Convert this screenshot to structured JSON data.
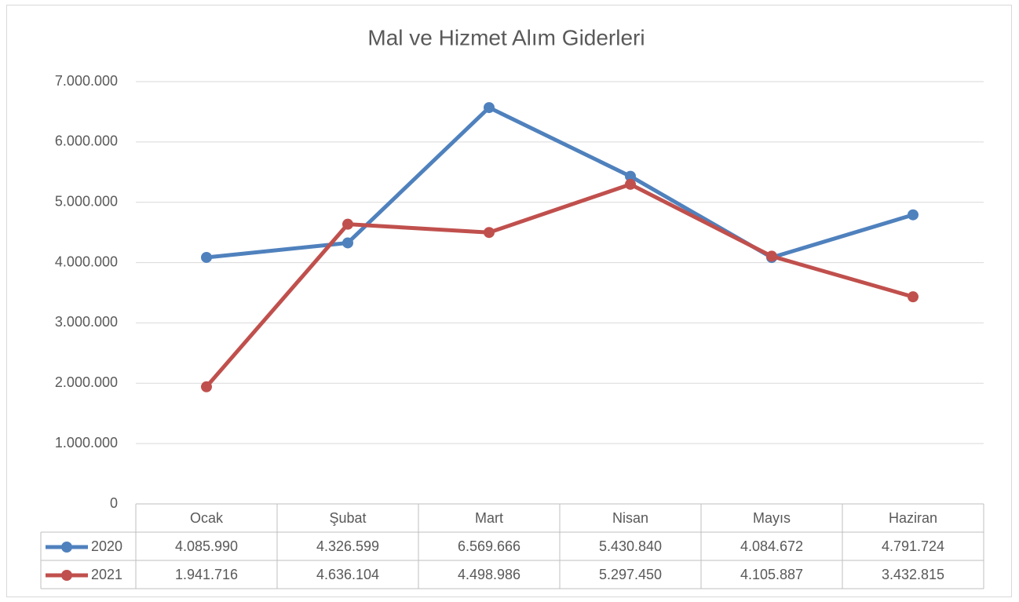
{
  "chart_data": {
    "type": "line",
    "title": "Mal ve Hizmet Alım Giderleri",
    "categories": [
      "Ocak",
      "Şubat",
      "Mart",
      "Nisan",
      "Mayıs",
      "Haziran"
    ],
    "series": [
      {
        "name": "2020",
        "color": "#4f81bd",
        "values": [
          4085990,
          4326599,
          6569666,
          5430840,
          4084672,
          4791724
        ],
        "value_labels": [
          "4.085.990",
          "4.326.599",
          "6.569.666",
          "5.430.840",
          "4.084.672",
          "4.791.724"
        ]
      },
      {
        "name": "2021",
        "color": "#c0504d",
        "values": [
          1941716,
          4636104,
          4498986,
          5297450,
          4105887,
          3432815
        ],
        "value_labels": [
          "1.941.716",
          "4.636.104",
          "4.498.986",
          "5.297.450",
          "4.105.887",
          "3.432.815"
        ]
      }
    ],
    "ylim": [
      0,
      7000000
    ],
    "yticks": [
      0,
      {
        "value": 1000000,
        "label": "1.000.000"
      },
      {
        "value": 2000000,
        "label": "2.000.000"
      },
      {
        "value": 3000000,
        "label": "3.000.000"
      },
      {
        "value": 4000000,
        "label": "4.000.000"
      },
      {
        "value": 5000000,
        "label": "5.000.000"
      },
      {
        "value": 6000000,
        "label": "6.000.000"
      },
      {
        "value": 7000000,
        "label": "7.000.000"
      }
    ],
    "grid": true,
    "data_table": true
  }
}
